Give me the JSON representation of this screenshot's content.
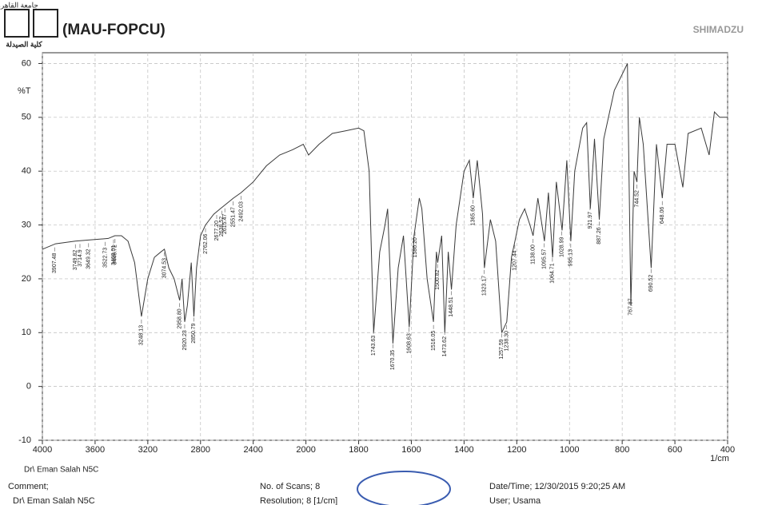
{
  "header": {
    "university": "جامعة القاهرة",
    "lab": "(MAU-FOPCU)",
    "faculty": "كلية الصيدلة",
    "brand": "SHIMADZU"
  },
  "chart_data": {
    "type": "line",
    "y_label": "%T",
    "x_label": "1/cm",
    "sample_note": "Dr\\ Eman Salah N5C",
    "x": [
      4000,
      3900,
      3750,
      3650,
      3500,
      3450,
      3400,
      3350,
      3300,
      3248,
      3200,
      3150,
      3100,
      3074,
      3040,
      3000,
      2958,
      2940,
      2920,
      2900,
      2870,
      2850,
      2830,
      2800,
      2762,
      2700,
      2650,
      2600,
      2550,
      2492,
      2400,
      2300,
      2200,
      2100,
      2020,
      2000,
      1990,
      1950,
      1900,
      1850,
      1800,
      1780,
      1760,
      1743,
      1720,
      1700,
      1690,
      1670,
      1650,
      1630,
      1608,
      1590,
      1570,
      1560,
      1540,
      1516,
      1505,
      1500,
      1485,
      1473,
      1460,
      1448,
      1430,
      1400,
      1380,
      1365,
      1350,
      1330,
      1323,
      1300,
      1280,
      1257,
      1238,
      1220,
      1207,
      1190,
      1170,
      1150,
      1138,
      1120,
      1095,
      1080,
      1064,
      1050,
      1028,
      1010,
      995,
      980,
      950,
      935,
      921,
      905,
      887,
      870,
      830,
      800,
      780,
      767,
      755,
      744,
      735,
      720,
      690,
      670,
      648,
      630,
      600,
      570,
      550,
      500,
      470,
      450,
      430,
      400
    ],
    "series": [
      {
        "color": "#3a3a3a",
        "values": [
          25.5,
          26.5,
          27,
          27.2,
          27.5,
          28,
          28,
          27,
          23,
          13,
          20,
          24,
          25,
          25.5,
          22,
          20,
          16,
          20,
          12,
          15,
          23,
          13,
          22,
          28,
          30,
          32,
          33,
          34,
          35,
          36,
          38,
          41,
          43,
          44,
          45,
          44,
          43,
          45,
          47,
          47.5,
          48,
          47.5,
          40,
          10,
          25,
          30,
          33,
          8,
          22,
          28,
          11,
          28,
          35,
          33,
          20,
          12,
          25,
          23,
          28,
          10,
          25,
          18,
          30,
          40,
          42,
          35,
          42,
          32,
          22,
          31,
          27,
          10,
          12,
          24,
          27,
          31,
          33,
          30,
          28,
          35,
          27,
          36,
          24,
          38,
          29,
          42,
          27,
          40,
          48,
          49,
          33,
          46,
          31,
          46,
          55,
          58,
          60,
          15,
          40,
          38,
          50,
          45,
          22,
          45,
          35,
          45,
          45,
          37,
          47,
          48,
          43,
          51,
          50,
          50
        ]
      }
    ],
    "xlim": [
      4000,
      400
    ],
    "ylim": [
      -10,
      62
    ],
    "xticks": [
      4000,
      3600,
      3200,
      2800,
      2400,
      2000,
      1800,
      1600,
      1400,
      1200,
      1000,
      800,
      600,
      400
    ],
    "yticks": [
      -10,
      0,
      10,
      20,
      30,
      40,
      50,
      60
    ],
    "grid": true,
    "peaks": [
      3907.48,
      3749.82,
      3714.9,
      3649.32,
      3522.73,
      3460.01,
      3448.72,
      3248.13,
      3074.53,
      {
        "value": 2958.8,
        "label": "2958.80"
      },
      2920.23,
      2850.79,
      2762.06,
      {
        "value": 2677.2,
        "label": "2677.20"
      },
      2638.52,
      2615.47,
      2551.47,
      2492.03,
      1743.63,
      1670.35,
      1608.63,
      {
        "value": 1586.2,
        "label": "1586.20"
      },
      1516.05,
      1500.82,
      1473.62,
      1448.51,
      {
        "value": 1365.6,
        "label": "1365.60"
      },
      1323.17,
      1257.59,
      {
        "value": 1238.3,
        "label": "1238.30"
      },
      1207.44,
      {
        "value": 1138,
        "label": "1138.00"
      },
      1095.57,
      1064.71,
      1028.99,
      995.13,
      921.97,
      887.26,
      767.87,
      744.52,
      690.52,
      648.06
    ]
  },
  "footer": {
    "comment": "Comment;",
    "operator": "Dr\\ Eman Salah N5C",
    "scans": "No. of Scans; 8",
    "resolution": "Resolution; 8 [1/cm]",
    "datetime": "Date/Time; 12/30/2015 9:20;25 AM",
    "user": "User; Usama"
  }
}
